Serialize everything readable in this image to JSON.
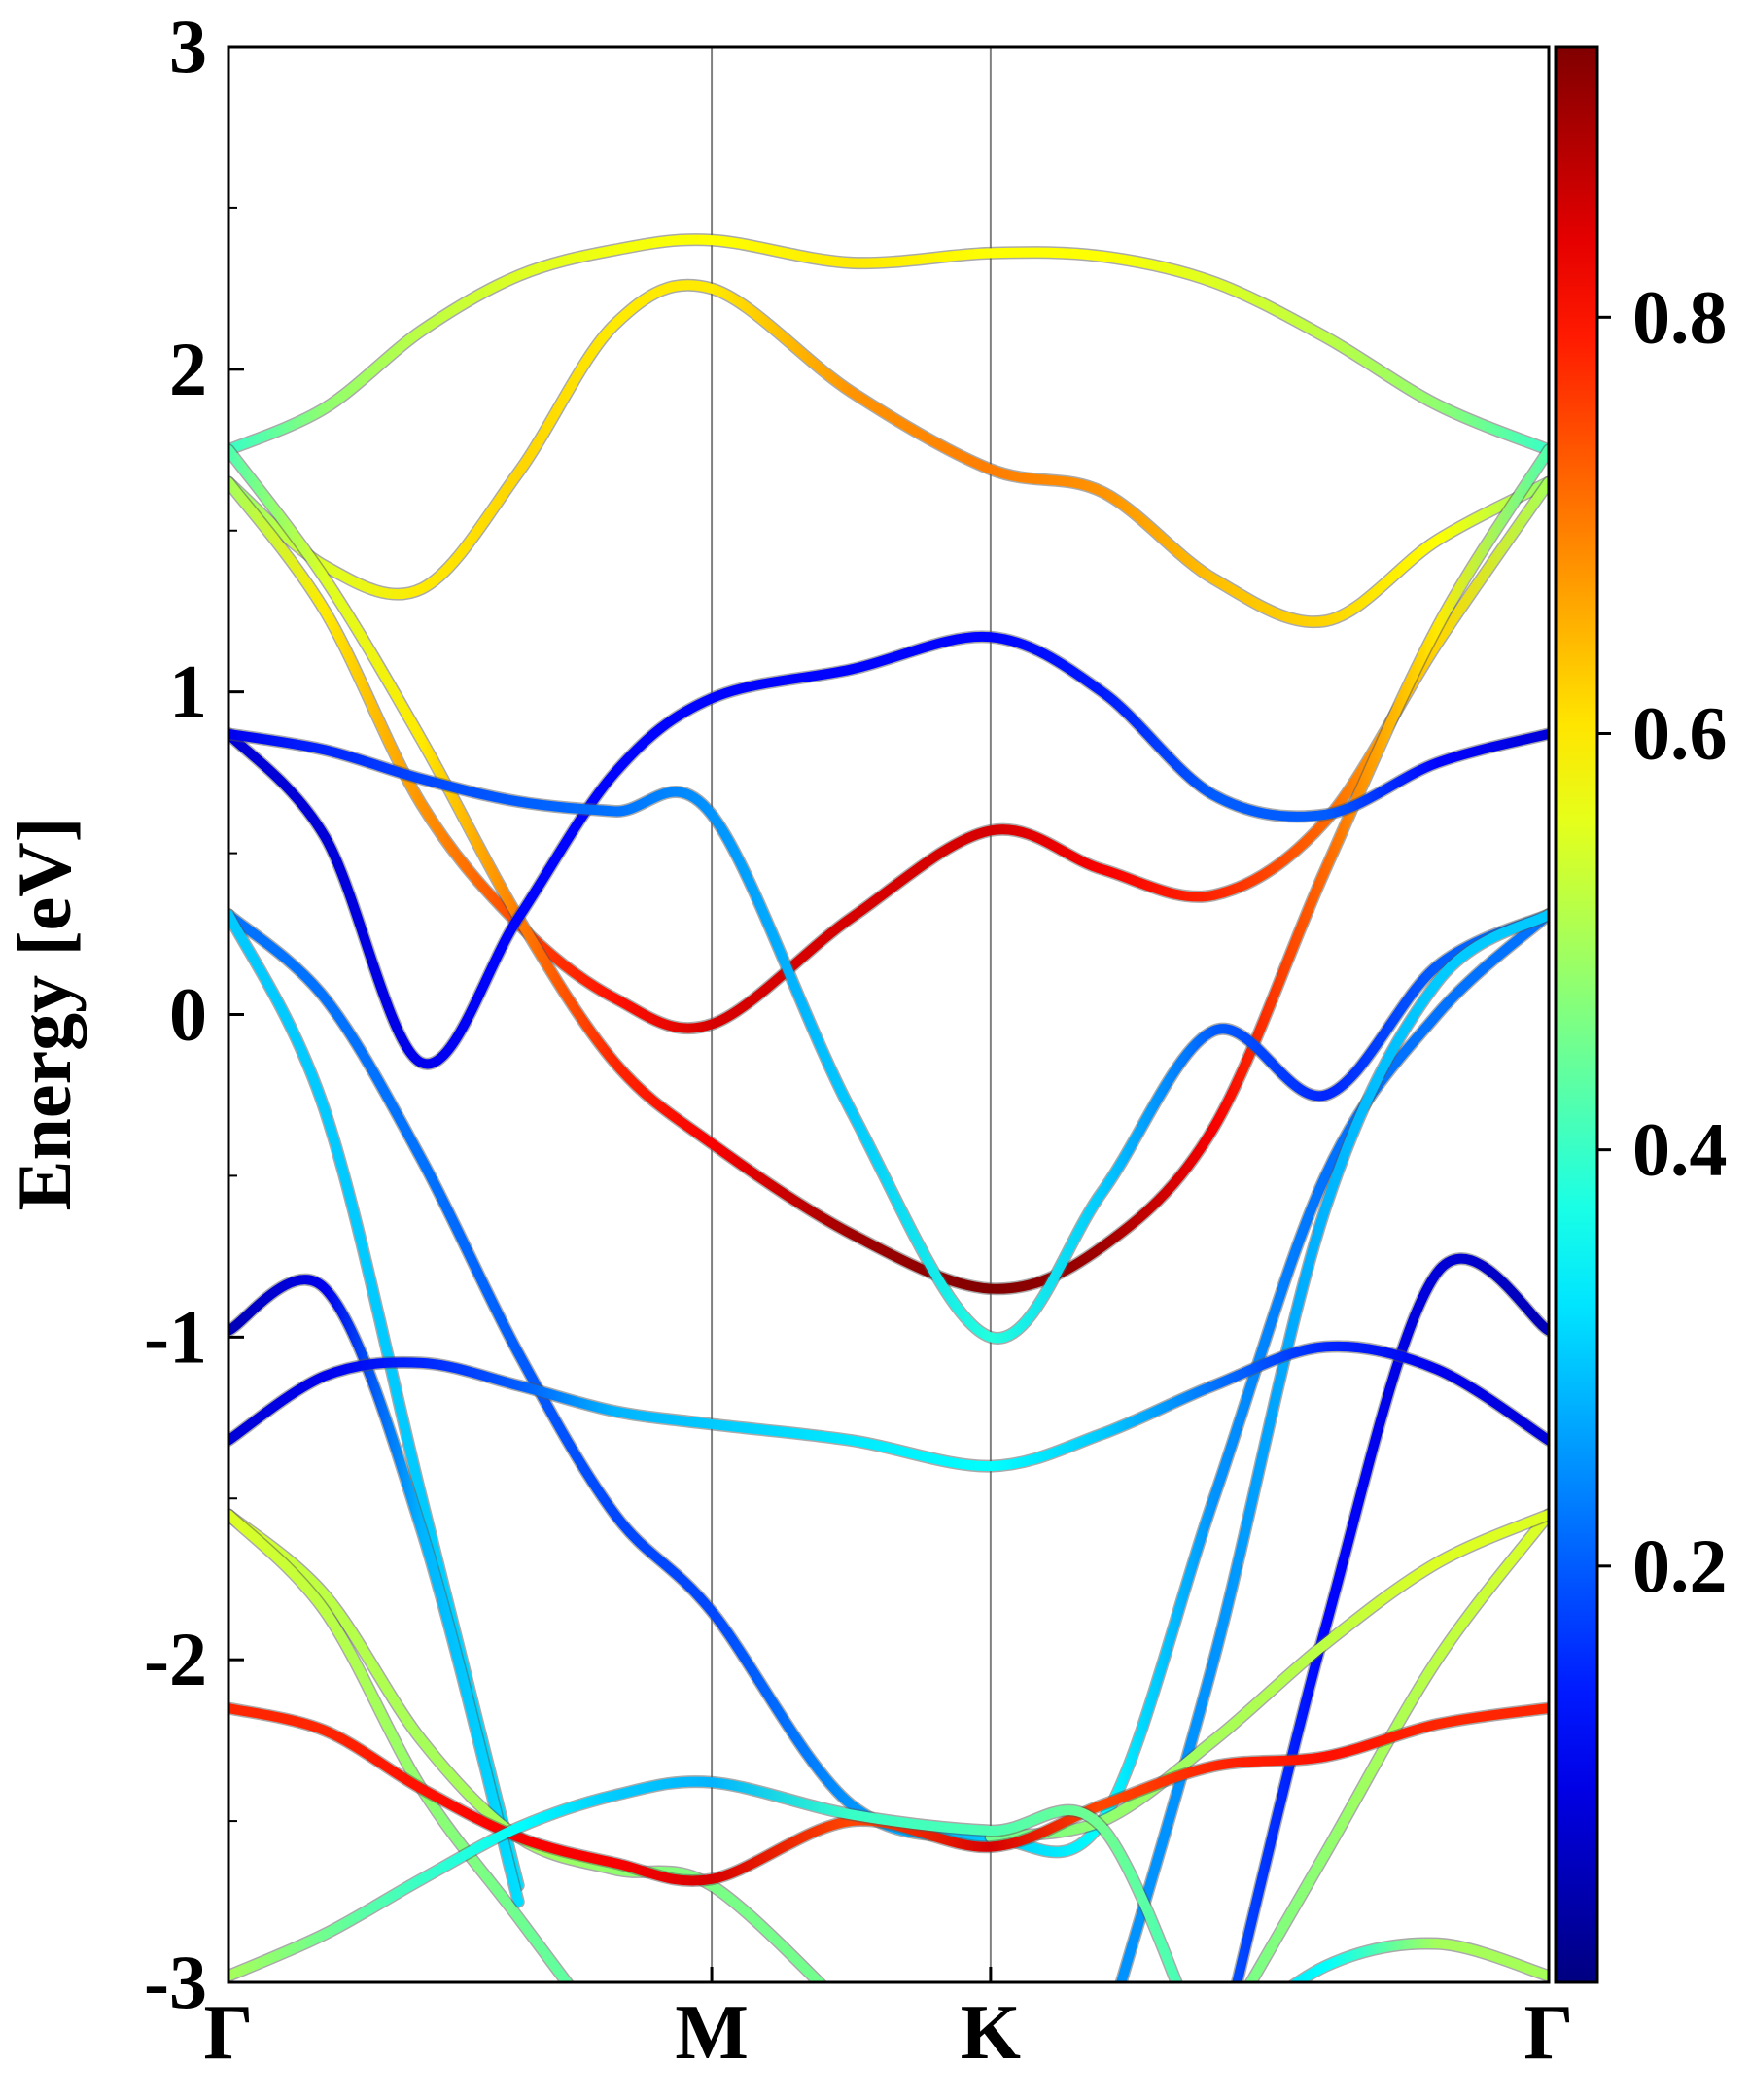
{
  "chart_data": {
    "type": "band-structure",
    "ylabel": "Energy [eV]",
    "xlim": [
      0,
      2.732
    ],
    "xticks": [
      {
        "value": 0,
        "label": "Γ"
      },
      {
        "value": 1,
        "label": "M"
      },
      {
        "value": 1.577,
        "label": "K"
      },
      {
        "value": 2.732,
        "label": "Γ"
      }
    ],
    "ylim": [
      -3,
      3
    ],
    "yticks": [
      -3,
      -2,
      -1,
      0,
      1,
      2,
      3
    ],
    "yminor": [
      -2.5,
      -1.5,
      -0.5,
      0.5,
      1.5,
      2.5
    ],
    "grid_x": true,
    "colormap": "jet",
    "clim": [
      0,
      0.93
    ],
    "cticks": [
      0.2,
      0.4,
      0.6,
      0.8
    ],
    "x": [
      0,
      0.2,
      0.4,
      0.6,
      0.8,
      1,
      1.289,
      1.577,
      1.808,
      2.039,
      2.27,
      2.501,
      2.732
    ],
    "series": [
      {
        "values": [
          1.75,
          1.88,
          2.12,
          2.29,
          2.37,
          2.4,
          2.33,
          2.36,
          2.35,
          2.27,
          2.1,
          1.89,
          1.75
        ],
        "weights": [
          0.4,
          0.48,
          0.52,
          0.55,
          0.57,
          0.58,
          0.6,
          0.58,
          0.58,
          0.55,
          0.52,
          0.48,
          0.4
        ]
      },
      {
        "values": [
          1.65,
          1.39,
          1.32,
          1.68,
          2.14,
          2.25,
          1.93,
          1.69,
          1.62,
          1.35,
          1.22,
          1.47,
          1.65
        ],
        "weights": [
          0.48,
          0.55,
          0.6,
          0.62,
          0.6,
          0.6,
          0.68,
          0.7,
          0.68,
          0.64,
          0.62,
          0.58,
          0.48
        ]
      },
      {
        "values": [
          1.65,
          1.25,
          0.65,
          0.28,
          0.05,
          -0.03,
          0.3,
          0.57,
          0.45,
          0.37,
          0.6,
          1.15,
          1.65
        ],
        "weights": [
          0.5,
          0.6,
          0.68,
          0.75,
          0.8,
          0.85,
          0.85,
          0.85,
          0.82,
          0.78,
          0.72,
          0.62,
          0.5
        ]
      },
      {
        "values": [
          1.75,
          1.35,
          0.85,
          0.3,
          -0.15,
          -0.4,
          -0.68,
          -0.85,
          -0.72,
          -0.35,
          0.45,
          1.2,
          1.75
        ],
        "weights": [
          0.42,
          0.55,
          0.6,
          0.7,
          0.78,
          0.82,
          0.9,
          0.93,
          0.9,
          0.82,
          0.72,
          0.6,
          0.42
        ]
      },
      {
        "values": [
          0.87,
          0.55,
          -0.15,
          0.3,
          0.75,
          0.98,
          1.07,
          1.17,
          1.0,
          0.68,
          0.62,
          0.78,
          0.87
        ],
        "weights": [
          0.08,
          0.08,
          0.1,
          0.12,
          0.12,
          0.12,
          0.12,
          0.12,
          0.14,
          0.2,
          0.2,
          0.12,
          0.08
        ]
      },
      {
        "values": [
          0.87,
          0.82,
          0.73,
          0.66,
          0.63,
          0.62,
          -0.3,
          -1.0,
          -0.55,
          -0.05,
          -0.25,
          0.15,
          0.31
        ],
        "weights": [
          0.1,
          0.15,
          0.18,
          0.2,
          0.22,
          0.25,
          0.3,
          0.38,
          0.3,
          0.2,
          0.15,
          0.2,
          0.22
        ]
      },
      {
        "values": [
          0.31,
          0.05,
          -0.45,
          -1.05,
          -1.55,
          -1.85,
          -2.45,
          -2.55,
          -2.5,
          -1.5,
          -0.5,
          0.0,
          0.31
        ],
        "weights": [
          0.22,
          0.22,
          0.22,
          0.2,
          0.18,
          0.18,
          0.25,
          0.3,
          0.35,
          0.25,
          0.22,
          0.22,
          0.22
        ]
      },
      {
        "values": [
          0.31,
          -0.3,
          -1.5,
          -2.7,
          null,
          null,
          null,
          null,
          -3.2,
          -2.0,
          -0.6,
          0.1,
          0.31
        ],
        "weights": [
          0.3,
          0.3,
          0.3,
          0.32,
          null,
          null,
          null,
          null,
          0.25,
          0.25,
          0.28,
          0.3,
          0.3
        ]
      },
      {
        "values": [
          -0.98,
          -0.85,
          -1.6,
          -2.75,
          null,
          null,
          null,
          null,
          null,
          -3.3,
          -1.9,
          -0.8,
          -0.98
        ],
        "weights": [
          0.05,
          0.1,
          0.28,
          0.32,
          null,
          null,
          null,
          null,
          null,
          0.2,
          0.12,
          0.08,
          0.05
        ]
      },
      {
        "values": [
          -1.32,
          -1.12,
          -1.08,
          -1.15,
          -1.23,
          -1.27,
          -1.32,
          -1.4,
          -1.3,
          -1.15,
          -1.03,
          -1.1,
          -1.32
        ],
        "weights": [
          0.08,
          0.1,
          0.15,
          0.2,
          0.28,
          0.3,
          0.33,
          0.35,
          0.3,
          0.22,
          0.15,
          0.1,
          0.08
        ]
      },
      {
        "values": [
          -1.55,
          -1.8,
          -2.25,
          -2.55,
          -2.65,
          -2.7,
          -3.1,
          null,
          null,
          -3.2,
          -2.6,
          -2.0,
          -1.55
        ],
        "weights": [
          0.55,
          0.52,
          0.5,
          0.5,
          0.48,
          0.46,
          0.45,
          null,
          null,
          0.45,
          0.48,
          0.52,
          0.55
        ]
      },
      {
        "values": [
          -1.55,
          -1.85,
          -2.4,
          -2.8,
          -3.2,
          null,
          null,
          -2.55,
          -2.5,
          -2.25,
          -1.95,
          -1.7,
          -1.55
        ],
        "weights": [
          0.55,
          0.52,
          0.48,
          0.45,
          0.42,
          null,
          null,
          0.45,
          0.48,
          0.5,
          0.52,
          0.55,
          0.55
        ]
      },
      {
        "values": [
          -2.15,
          -2.22,
          -2.4,
          -2.55,
          -2.63,
          -2.68,
          -2.5,
          -2.58,
          -2.45,
          -2.33,
          -2.3,
          -2.2,
          -2.15
        ],
        "weights": [
          0.78,
          0.78,
          0.8,
          0.82,
          0.82,
          0.85,
          0.75,
          0.85,
          0.75,
          0.78,
          0.8,
          0.78,
          0.78
        ]
      },
      {
        "values": [
          -2.98,
          -2.85,
          -2.68,
          -2.52,
          -2.42,
          -2.38,
          -2.48,
          -2.53,
          -2.52,
          -3.3,
          null,
          null,
          null
        ],
        "weights": [
          0.5,
          0.45,
          0.4,
          0.35,
          0.3,
          0.28,
          0.4,
          0.42,
          0.45,
          0.4,
          null,
          null,
          null
        ]
      },
      {
        "values": [
          null,
          null,
          null,
          null,
          null,
          null,
          null,
          null,
          null,
          -3.2,
          -2.95,
          -2.88,
          -2.98
        ],
        "weights": [
          null,
          null,
          null,
          null,
          null,
          null,
          null,
          null,
          null,
          0.3,
          0.35,
          0.5,
          0.5
        ]
      }
    ]
  }
}
